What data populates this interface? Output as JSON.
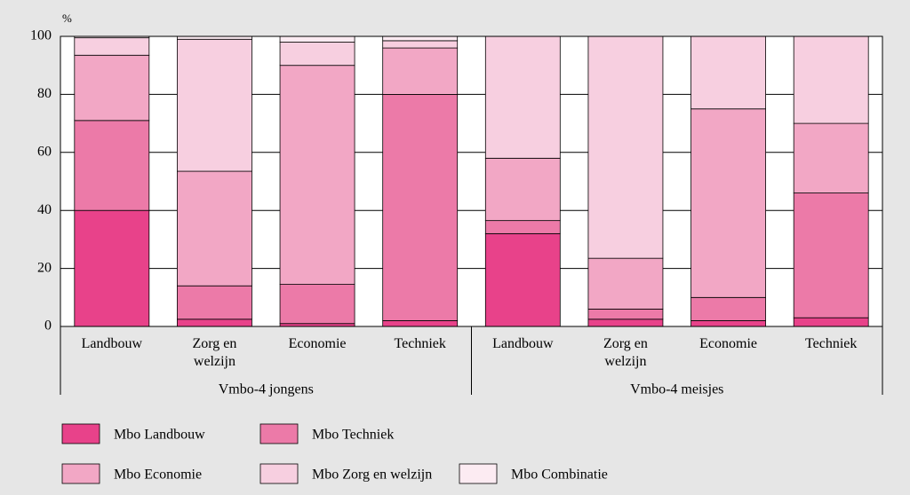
{
  "chart_data": {
    "type": "bar",
    "stacked": true,
    "y_label": "%",
    "categories": [
      "Landbouw",
      "Zorg en welzijn",
      "Economie",
      "Techniek",
      "Landbouw",
      "Zorg en welzijn",
      "Economie",
      "Techniek"
    ],
    "groups": [
      "Vmbo-4 jongens",
      "Vmbo-4 meisjes"
    ],
    "series": [
      {
        "name": "Mbo Landbouw",
        "color": "#e8428a",
        "values": [
          40,
          2.5,
          1,
          2,
          32,
          2.5,
          2,
          3
        ]
      },
      {
        "name": "Mbo Techniek",
        "color": "#ec7aa8",
        "values": [
          31,
          11.5,
          13.5,
          78,
          4.5,
          3.5,
          8,
          43
        ]
      },
      {
        "name": "Mbo Economie",
        "color": "#f2a7c5",
        "values": [
          22.5,
          39.5,
          75.5,
          16,
          21.5,
          17.5,
          65,
          24
        ]
      },
      {
        "name": "Mbo Zorg en welzijn",
        "color": "#f7cfe0",
        "values": [
          6,
          45.5,
          8,
          2.5,
          42,
          76.5,
          25,
          30
        ]
      },
      {
        "name": "Mbo Combinatie",
        "color": "#fcebf2",
        "values": [
          0.5,
          1,
          2,
          1.5,
          0,
          0,
          0,
          0
        ]
      }
    ],
    "ylim": [
      0,
      100
    ],
    "yticks": [
      0,
      20,
      40,
      60,
      80,
      100
    ],
    "grid": true
  }
}
